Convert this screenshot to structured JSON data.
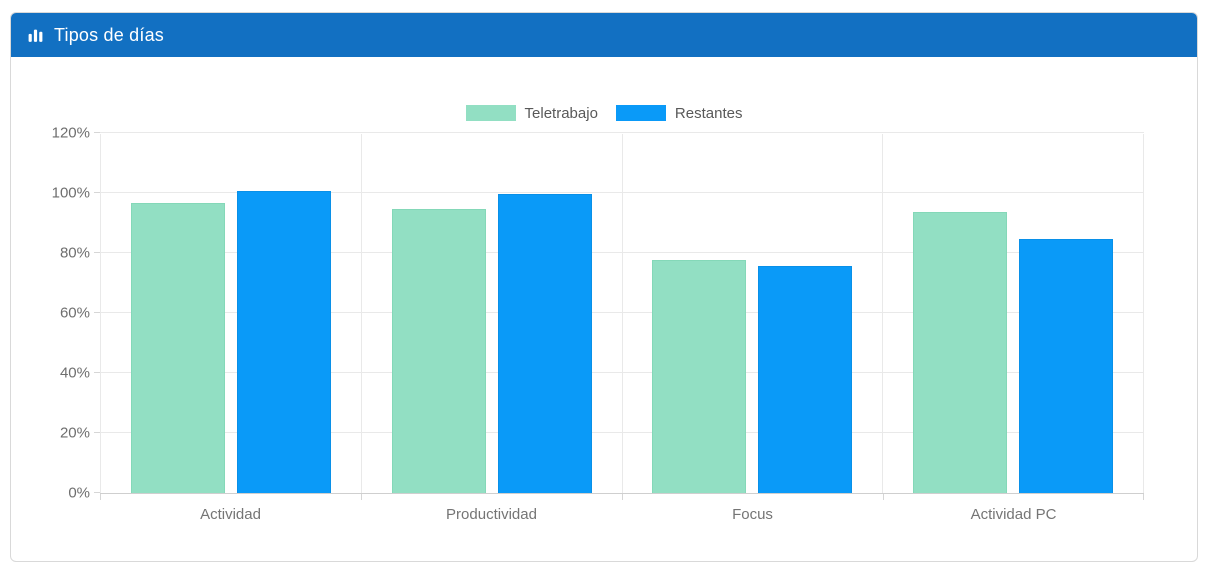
{
  "header": {
    "title": "Tipos de días",
    "icon": "bar-chart-icon",
    "color": "#1270C2"
  },
  "chart_data": {
    "type": "bar",
    "title": "Tipos de días",
    "categories": [
      "Actividad",
      "Productividad",
      "Focus",
      "Actividad PC"
    ],
    "series": [
      {
        "name": "Teletrabajo",
        "color": "#92DFC3",
        "values": [
          97,
          95,
          78,
          94
        ]
      },
      {
        "name": "Restantes",
        "color": "#0A9AF8",
        "values": [
          101,
          100,
          76,
          85
        ]
      }
    ],
    "xlabel": "",
    "ylabel": "",
    "yticks": [
      "0%",
      "20%",
      "40%",
      "60%",
      "80%",
      "100%",
      "120%"
    ],
    "ylim": [
      0,
      120
    ],
    "grid": true,
    "legend_position": "top"
  }
}
